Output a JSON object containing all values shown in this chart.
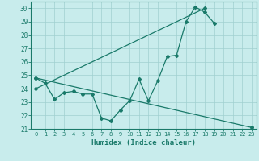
{
  "title": "",
  "xlabel": "Humidex (Indice chaleur)",
  "ylabel": "",
  "bg_color": "#c8ecec",
  "line_color": "#1a7a6a",
  "grid_color": "#a0d0d0",
  "xlim": [
    -0.5,
    23.5
  ],
  "ylim": [
    21,
    30.5
  ],
  "xticks": [
    0,
    1,
    2,
    3,
    4,
    5,
    6,
    7,
    8,
    9,
    10,
    11,
    12,
    13,
    14,
    15,
    16,
    17,
    18,
    19,
    20,
    21,
    22,
    23
  ],
  "yticks": [
    21,
    22,
    23,
    24,
    25,
    26,
    27,
    28,
    29,
    30
  ],
  "series1": {
    "x": [
      0,
      1,
      2,
      3,
      4,
      5,
      6,
      7,
      8,
      9,
      10,
      11,
      12,
      13,
      14,
      15,
      16,
      17,
      18,
      19,
      20,
      21,
      22,
      23
    ],
    "y": [
      24.8,
      24.4,
      23.2,
      23.7,
      23.8,
      23.6,
      23.6,
      21.8,
      21.6,
      22.4,
      23.1,
      24.7,
      23.1,
      24.6,
      26.4,
      26.5,
      29.0,
      30.1,
      29.7,
      28.9,
      null,
      null,
      null,
      21.1
    ]
  },
  "series2": {
    "x": [
      0,
      23
    ],
    "y": [
      24.8,
      21.1
    ]
  },
  "series3": {
    "x": [
      0,
      18
    ],
    "y": [
      24.0,
      30.0
    ]
  }
}
